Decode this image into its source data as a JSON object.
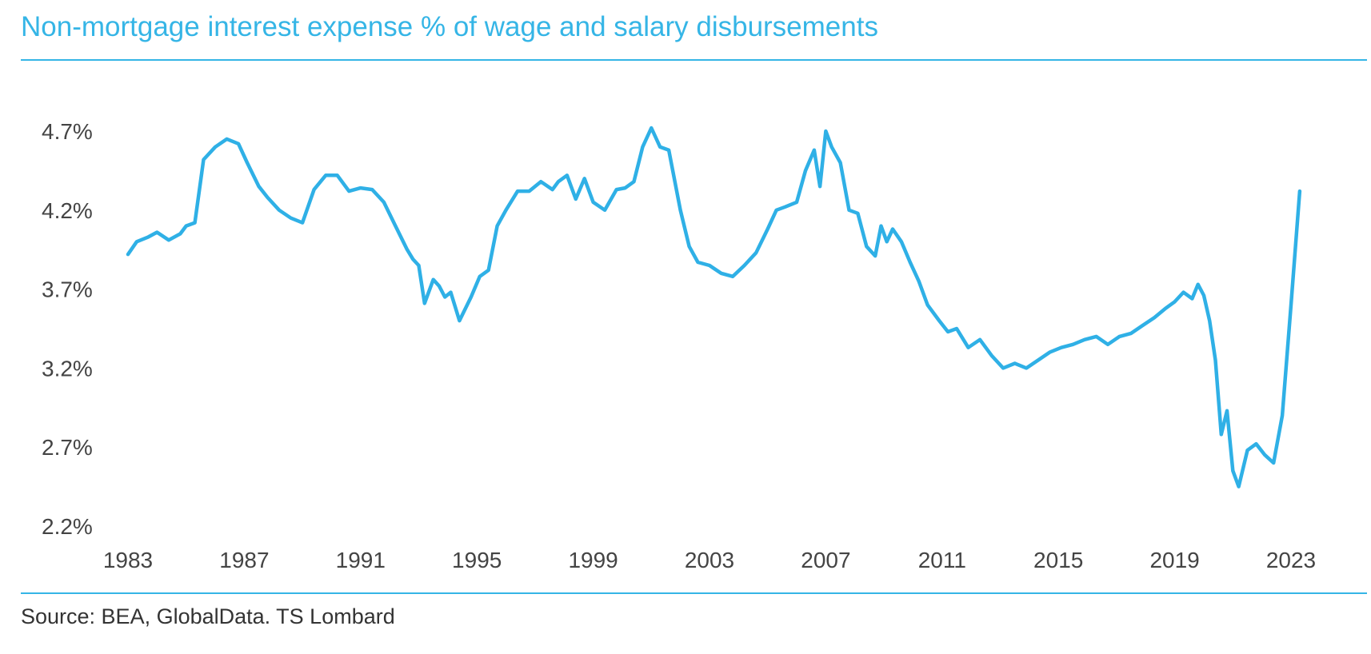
{
  "title": "Non-mortgage interest expense % of wage and salary disbursements",
  "source": "Source: BEA, GlobalData. TS Lombard",
  "colors": {
    "accent": "#35b5e6",
    "line": "#2fb0e6",
    "text": "#444444"
  },
  "chart_data": {
    "type": "line",
    "title": "Non-mortgage interest expense % of wage and salary disbursements",
    "xlabel": "",
    "ylabel": "",
    "x_ticks": [
      "1983",
      "1987",
      "1991",
      "1995",
      "1999",
      "2003",
      "2007",
      "2011",
      "2015",
      "2019",
      "2023"
    ],
    "y_ticks": [
      "2.2%",
      "2.7%",
      "3.2%",
      "3.7%",
      "4.2%",
      "4.7%"
    ],
    "xlim": [
      1983,
      2025.5
    ],
    "ylim": [
      2.2,
      4.7
    ],
    "grid": false,
    "legend": "none",
    "series": [
      {
        "x": [
          1983.0,
          1983.3,
          1983.7,
          1984.0,
          1984.4,
          1984.8,
          1985.0,
          1985.3,
          1985.6,
          1986.0,
          1986.4,
          1986.8,
          1987.1,
          1987.5,
          1987.8,
          1988.2,
          1988.6,
          1989.0,
          1989.4,
          1989.8,
          1990.2,
          1990.6,
          1991.0,
          1991.4,
          1991.8,
          1992.2,
          1992.6,
          1992.8,
          1993.0,
          1993.2,
          1993.5,
          1993.7,
          1993.9,
          1994.1,
          1994.4,
          1994.8,
          1995.1,
          1995.4,
          1995.7,
          1996.0,
          1996.4,
          1996.8,
          1997.2,
          1997.6,
          1997.8,
          1998.1,
          1998.4,
          1998.7,
          1999.0,
          1999.4,
          1999.8,
          2000.1,
          2000.4,
          2000.7,
          2001.0,
          2001.3,
          2001.6,
          2002.0,
          2002.3,
          2002.6,
          2003.0,
          2003.4,
          2003.8,
          2004.2,
          2004.6,
          2005.0,
          2005.3,
          2005.6,
          2006.0,
          2006.3,
          2006.6,
          2006.8,
          2007.0,
          2007.2,
          2007.5,
          2007.8,
          2008.1,
          2008.4,
          2008.7,
          2008.9,
          2009.1,
          2009.3,
          2009.6,
          2009.9,
          2010.2,
          2010.5,
          2010.9,
          2011.2,
          2011.5,
          2011.9,
          2012.3,
          2012.7,
          2013.1,
          2013.5,
          2013.9,
          2014.3,
          2014.7,
          2015.1,
          2015.5,
          2015.9,
          2016.3,
          2016.7,
          2017.1,
          2017.5,
          2017.9,
          2018.3,
          2018.7,
          2019.0,
          2019.3,
          2019.6,
          2019.8,
          2020.0,
          2020.2,
          2020.4,
          2020.6,
          2020.8,
          2021.0,
          2021.2,
          2021.5,
          2021.8,
          2022.1,
          2022.4,
          2022.7,
          2023.0,
          2023.3
        ],
        "values": [
          3.92,
          4.0,
          4.03,
          4.06,
          4.01,
          4.05,
          4.1,
          4.12,
          4.52,
          4.6,
          4.65,
          4.62,
          4.5,
          4.35,
          4.28,
          4.2,
          4.15,
          4.12,
          4.33,
          4.42,
          4.42,
          4.32,
          4.34,
          4.33,
          4.25,
          4.1,
          3.95,
          3.89,
          3.85,
          3.61,
          3.76,
          3.72,
          3.65,
          3.68,
          3.5,
          3.65,
          3.78,
          3.82,
          4.1,
          4.2,
          4.32,
          4.32,
          4.38,
          4.33,
          4.38,
          4.42,
          4.27,
          4.4,
          4.25,
          4.2,
          4.33,
          4.34,
          4.38,
          4.6,
          4.72,
          4.6,
          4.58,
          4.2,
          3.97,
          3.87,
          3.85,
          3.8,
          3.78,
          3.85,
          3.93,
          4.08,
          4.2,
          4.22,
          4.25,
          4.45,
          4.58,
          4.35,
          4.7,
          4.6,
          4.5,
          4.2,
          4.18,
          3.97,
          3.91,
          4.1,
          4.0,
          4.08,
          4.0,
          3.87,
          3.75,
          3.6,
          3.5,
          3.43,
          3.45,
          3.33,
          3.38,
          3.28,
          3.2,
          3.23,
          3.2,
          3.25,
          3.3,
          3.33,
          3.35,
          3.38,
          3.4,
          3.35,
          3.4,
          3.42,
          3.47,
          3.52,
          3.58,
          3.62,
          3.68,
          3.64,
          3.73,
          3.66,
          3.5,
          3.25,
          2.78,
          2.93,
          2.55,
          2.45,
          2.68,
          2.72,
          2.65,
          2.6,
          2.9,
          3.6,
          4.32
        ]
      }
    ]
  }
}
